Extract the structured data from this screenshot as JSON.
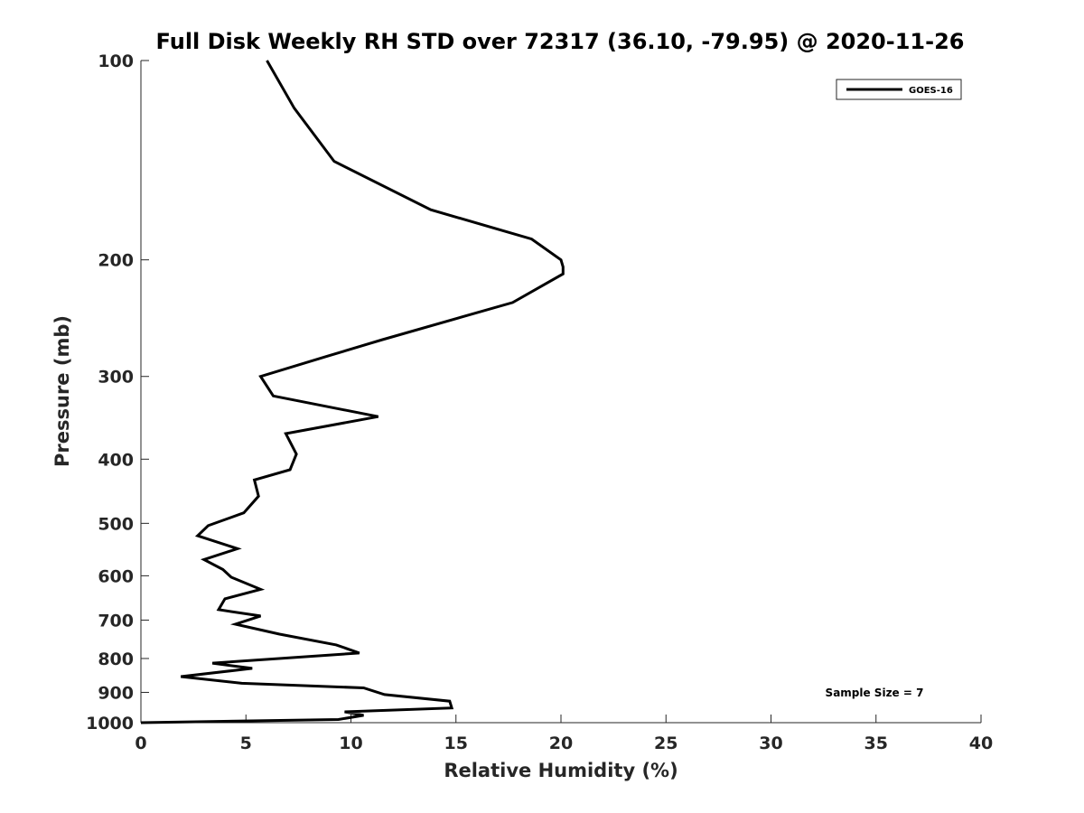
{
  "chart_data": {
    "type": "line",
    "title": "Full Disk Weekly RH STD over 72317 (36.10, -79.95) @ 2020-11-26",
    "xlabel": "Relative Humidity (%)",
    "ylabel": "Pressure (mb)",
    "xlim": [
      0,
      40
    ],
    "ylim": [
      100,
      1000
    ],
    "y_scale": "log",
    "y_reversed": true,
    "grid": false,
    "x_ticks": [
      0,
      5,
      10,
      15,
      20,
      25,
      30,
      35,
      40
    ],
    "y_ticks": [
      100,
      200,
      300,
      400,
      500,
      600,
      700,
      800,
      900,
      1000
    ],
    "legend": {
      "position": "top-right",
      "entries": [
        "GOES-16"
      ]
    },
    "annotation": "Sample Size = 7",
    "series": [
      {
        "name": "GOES-16",
        "color": "#000000",
        "points": [
          [
            6.0,
            100
          ],
          [
            7.3,
            118
          ],
          [
            9.2,
            142
          ],
          [
            13.8,
            168
          ],
          [
            18.6,
            186
          ],
          [
            20.0,
            200
          ],
          [
            20.1,
            205
          ],
          [
            20.1,
            210
          ],
          [
            17.7,
            232
          ],
          [
            11.5,
            264
          ],
          [
            8.8,
            280
          ],
          [
            5.7,
            300
          ],
          [
            6.3,
            321
          ],
          [
            11.3,
            345
          ],
          [
            6.9,
            366
          ],
          [
            7.4,
            393
          ],
          [
            7.1,
            415
          ],
          [
            5.4,
            430
          ],
          [
            5.6,
            455
          ],
          [
            4.9,
            482
          ],
          [
            3.2,
            504
          ],
          [
            2.7,
            522
          ],
          [
            4.6,
            546
          ],
          [
            3.0,
            567
          ],
          [
            3.9,
            587
          ],
          [
            4.3,
            603
          ],
          [
            5.7,
            629
          ],
          [
            4.0,
            650
          ],
          [
            3.7,
            675
          ],
          [
            5.7,
            690
          ],
          [
            4.5,
            710
          ],
          [
            6.6,
            735
          ],
          [
            9.3,
            763
          ],
          [
            10.4,
            785
          ],
          [
            3.4,
            813
          ],
          [
            5.3,
            828
          ],
          [
            1.9,
            852
          ],
          [
            4.8,
            872
          ],
          [
            10.6,
            886
          ],
          [
            11.6,
            907
          ],
          [
            14.7,
            928
          ],
          [
            14.8,
            950
          ],
          [
            9.7,
            963
          ],
          [
            10.6,
            975
          ],
          [
            9.4,
            989
          ],
          [
            0.0,
            1000
          ]
        ]
      }
    ]
  }
}
